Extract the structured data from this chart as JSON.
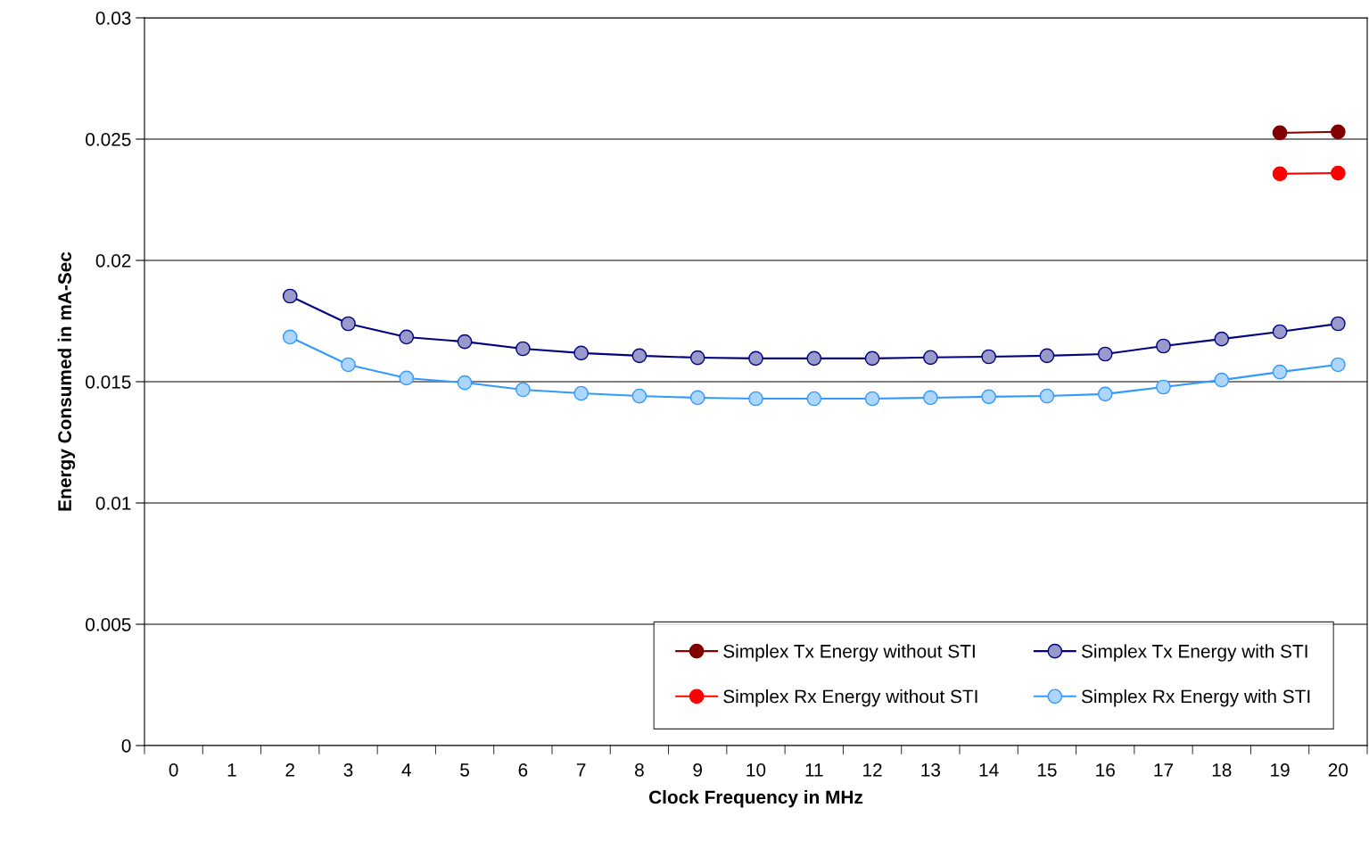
{
  "chart_data": {
    "type": "line",
    "xlabel": "Clock Frequency in MHz",
    "ylabel": "Energy Consumed in mA-Sec",
    "categories": [
      "0",
      "1",
      "2",
      "3",
      "4",
      "5",
      "6",
      "7",
      "8",
      "9",
      "10",
      "11",
      "12",
      "13",
      "14",
      "15",
      "16",
      "17",
      "18",
      "19",
      "20"
    ],
    "series": [
      {
        "name": "Simplex Tx Energy without STI",
        "color": "#800000",
        "values": [
          null,
          null,
          null,
          null,
          null,
          null,
          null,
          null,
          null,
          null,
          null,
          null,
          null,
          null,
          null,
          null,
          null,
          null,
          null,
          0.02526,
          0.0253
        ]
      },
      {
        "name": "Simplex Rx Energy without STI",
        "color": "#ff0000",
        "values": [
          null,
          null,
          null,
          null,
          null,
          null,
          null,
          null,
          null,
          null,
          null,
          null,
          null,
          null,
          null,
          null,
          null,
          null,
          null,
          0.02357,
          0.0236
        ]
      },
      {
        "name": "Simplex Tx Energy with STI",
        "color": "#000080",
        "values": [
          null,
          null,
          0.01853,
          0.01739,
          0.01684,
          0.01665,
          0.01636,
          0.01618,
          0.01607,
          0.01599,
          0.01596,
          0.01596,
          0.01596,
          0.016,
          0.01603,
          0.01607,
          0.01614,
          0.01647,
          0.01676,
          0.01706,
          0.01739
        ]
      },
      {
        "name": "Simplex Rx Energy with STI",
        "color": "#3399ff",
        "values": [
          null,
          null,
          0.01684,
          0.0157,
          0.01515,
          0.01496,
          0.01467,
          0.01452,
          0.01441,
          0.01434,
          0.0143,
          0.0143,
          0.0143,
          0.01434,
          0.01438,
          0.01441,
          0.01449,
          0.01478,
          0.01507,
          0.0154,
          0.0157
        ]
      }
    ],
    "ylim": [
      0,
      0.03
    ],
    "yticks": [
      0,
      0.005,
      0.01,
      0.015,
      0.02,
      0.025,
      0.03
    ],
    "grid": "y",
    "legend": "bottom right",
    "marker": "circle",
    "line_style": "solid"
  }
}
